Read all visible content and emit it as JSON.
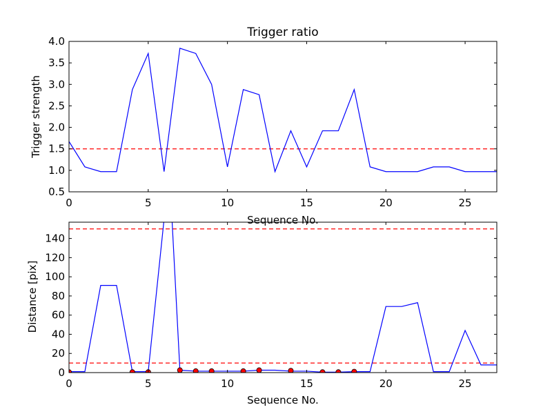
{
  "chart_data": [
    {
      "type": "line",
      "title": "Trigger ratio",
      "xlabel": "Sequence No.",
      "ylabel": "Trigger strength",
      "xlim": [
        0,
        27
      ],
      "ylim": [
        0.5,
        4.0
      ],
      "xticks": [
        0,
        5,
        10,
        15,
        20,
        25
      ],
      "xtick_labels": [
        "0",
        "5",
        "10",
        "15",
        "20",
        "25"
      ],
      "yticks": [
        0.5,
        1.0,
        1.5,
        2.0,
        2.5,
        3.0,
        3.5,
        4.0
      ],
      "ytick_labels": [
        "0.5",
        "1.0",
        "1.5",
        "2.0",
        "2.5",
        "3.0",
        "3.5",
        "4.0"
      ],
      "grid": false,
      "series": [
        {
          "color": "#0000ff",
          "x": [
            0,
            1,
            2,
            3,
            4,
            5,
            6,
            7,
            8,
            9,
            10,
            11,
            12,
            13,
            14,
            15,
            16,
            17,
            18,
            19,
            20,
            21,
            22,
            23,
            24,
            25,
            26,
            27
          ],
          "values": [
            1.67,
            1.08,
            0.97,
            0.97,
            2.88,
            3.72,
            0.97,
            3.84,
            3.72,
            3.0,
            1.08,
            2.88,
            2.76,
            0.97,
            1.92,
            1.08,
            1.92,
            1.92,
            2.88,
            1.08,
            0.97,
            0.97,
            0.97,
            1.08,
            1.08,
            0.97,
            0.97,
            0.97
          ]
        }
      ],
      "reference_lines": [
        {
          "y": 1.5,
          "color": "#ff0000",
          "style": "dashed"
        }
      ]
    },
    {
      "type": "line",
      "title": "",
      "xlabel": "Sequence No.",
      "ylabel": "Distance [pix]",
      "xlim": [
        0,
        27
      ],
      "ylim": [
        0,
        157
      ],
      "xticks": [
        0,
        5,
        10,
        15,
        20,
        25
      ],
      "xtick_labels": [
        "0",
        "5",
        "10",
        "15",
        "20",
        "25"
      ],
      "yticks": [
        0,
        20,
        40,
        60,
        80,
        100,
        120,
        140
      ],
      "ytick_labels": [
        "0",
        "20",
        "40",
        "60",
        "80",
        "100",
        "120",
        "140"
      ],
      "grid": false,
      "series": [
        {
          "color": "#0000ff",
          "x": [
            0,
            1,
            2,
            3,
            4,
            5,
            6,
            6.5,
            7,
            8,
            9,
            10,
            11,
            12,
            13,
            14,
            15,
            16,
            17,
            18,
            19,
            20,
            21,
            22,
            23,
            24,
            25,
            26,
            27
          ],
          "values": [
            1,
            1,
            91,
            91,
            1,
            1,
            160,
            160,
            2.5,
            1.5,
            1.5,
            1.5,
            1.5,
            2.5,
            2.5,
            1.5,
            1.5,
            0.5,
            0.5,
            1,
            1,
            69,
            69,
            73,
            1,
            1,
            44,
            8,
            8
          ]
        },
        {
          "color": "#ff0000",
          "marker": "circle",
          "x": [
            0,
            4,
            5,
            7,
            8,
            9,
            11,
            12,
            14,
            16,
            17,
            18
          ],
          "values": [
            0.5,
            0.5,
            0.5,
            2.5,
            1.5,
            1.5,
            1.5,
            2.5,
            2.0,
            0.5,
            0.5,
            1.0
          ]
        }
      ],
      "reference_lines": [
        {
          "y": 10,
          "color": "#ff0000",
          "style": "dashed"
        },
        {
          "y": 150,
          "color": "#ff0000",
          "style": "dashed"
        }
      ]
    }
  ]
}
